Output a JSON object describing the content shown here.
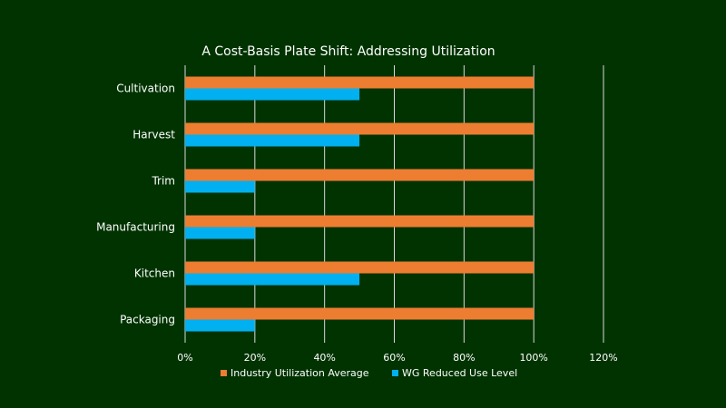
{
  "chart_data": {
    "type": "bar",
    "orientation": "horizontal",
    "title": "A Cost-Basis Plate Shift: Addressing Utilization",
    "categories": [
      "Cultivation",
      "Harvest",
      "Trim",
      "Manufacturing",
      "Kitchen",
      "Packaging"
    ],
    "series": [
      {
        "name": "Industry Utilization Average",
        "color": "#ed7d31",
        "values": [
          100,
          100,
          100,
          100,
          100,
          100
        ]
      },
      {
        "name": "WG Reduced Use Level",
        "color": "#00b0f0",
        "values": [
          50,
          50,
          20,
          20,
          50,
          20
        ]
      }
    ],
    "xlim": [
      0,
      120
    ],
    "xticks": [
      "0%",
      "20%",
      "40%",
      "60%",
      "80%",
      "100%",
      "120%"
    ],
    "grid": true,
    "legend_position": "bottom"
  }
}
